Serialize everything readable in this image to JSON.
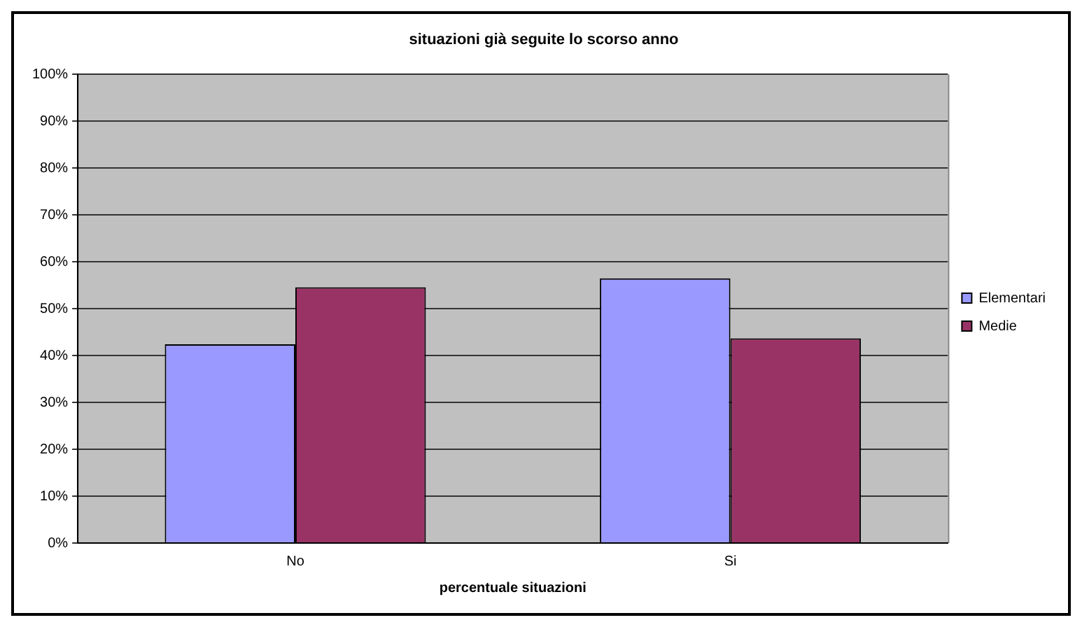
{
  "chart_data": {
    "type": "bar",
    "title": "situazioni già seguite lo scorso anno",
    "xlabel": "percentuale situazioni",
    "categories": [
      "No",
      "Si"
    ],
    "series": [
      {
        "name": "Elementari",
        "color": "#9999ff",
        "values": [
          42.4,
          56.5
        ]
      },
      {
        "name": "Medie",
        "color": "#993366",
        "values": [
          54.6,
          43.7
        ]
      }
    ],
    "ylim": [
      0,
      100
    ],
    "yticks": [
      {
        "value": 0,
        "label": "0%"
      },
      {
        "value": 10,
        "label": "10%"
      },
      {
        "value": 20,
        "label": "20%"
      },
      {
        "value": 30,
        "label": "30%"
      },
      {
        "value": 40,
        "label": "40%"
      },
      {
        "value": 50,
        "label": "50%"
      },
      {
        "value": 60,
        "label": "60%"
      },
      {
        "value": 70,
        "label": "70%"
      },
      {
        "value": 80,
        "label": "80%"
      },
      {
        "value": 90,
        "label": "90%"
      },
      {
        "value": 100,
        "label": "100%"
      }
    ],
    "grid": "y",
    "legend": "right"
  }
}
